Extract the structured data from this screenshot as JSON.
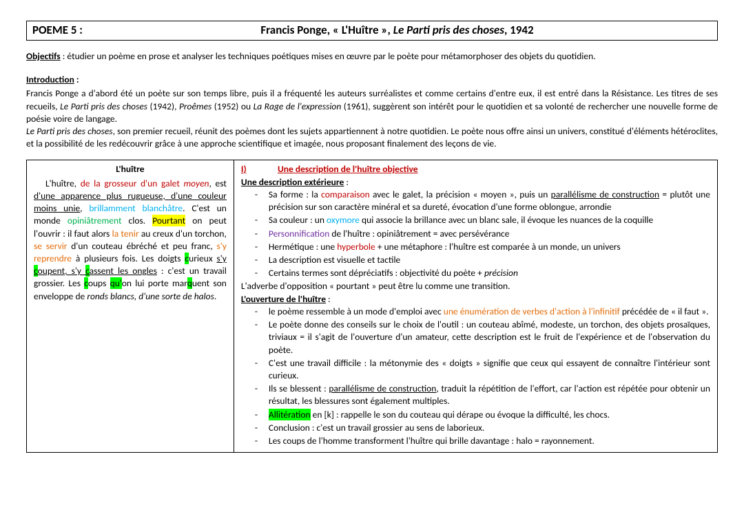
{
  "title": {
    "left": "POEME 5 :",
    "center_plain": "Francis Ponge, « L'Huître », ",
    "center_italic": "Le Parti pris des choses",
    "center_tail": ", 1942"
  },
  "objectifs": {
    "label": "Objectifs",
    "text": " : étudier un poème en prose et analyser les techniques poétiques mises en œuvre par le poète pour métamorphoser des objets du quotidien."
  },
  "intro": {
    "label": "Introduction",
    "p1a": "Francis Ponge a d'abord été un poète sur son temps libre, puis il a fréquenté les auteurs surréalistes et comme certains d'entre eux, il est entré dans la Résistance. Les titres de ses recueils, ",
    "p1b": "Le Parti pris des choses",
    "p1c": " (1942), ",
    "p1d": "Proêmes",
    "p1e": " (1952) ou ",
    "p1f": "La Rage de l'expression",
    "p1g": " (1961), suggèrent son intérêt pour le quotidien et sa volonté de rechercher une nouvelle forme de poésie voire de langage.",
    "p2a": "Le Parti pris des choses",
    "p2b": ", son premier recueil, réunit des poèmes dont les sujets appartiennent à notre quotidien. Le poète nous offre ainsi un univers, constitué d'éléments hétéroclites, et la possibilité de les redécouvrir grâce à une approche scientifique et imagée, nous proposant finalement des leçons de vie."
  },
  "poem": {
    "title": "L'huître",
    "t1": "   L'huître, ",
    "t2": "de la grosseur d'un galet ",
    "t3": "moyen",
    "t4": ", est ",
    "t5": "d'une apparence plus rugueuse, d'une couleur moins unie",
    "t6": ", ",
    "t7": "brillamment blanchâtre",
    "t8": ". C'est un monde ",
    "t9": "opiniâtrement",
    "t10": " clos. ",
    "t11": "Pourtant",
    "t12": " on peut l'ouvrir : il faut alors ",
    "t13": "la tenir",
    "t14": " au creux d'un torchon, ",
    "t15": "se servir",
    "t16": " d'un couteau ébréché et peu franc, ",
    "t17": "s'y reprendre",
    "t18": " à plusieurs fois. Les doigts ",
    "t19a": "c",
    "t19b": "urieux ",
    "t20": "s'y ",
    "t20a": "c",
    "t20b": "oupent, s'y ",
    "t20c": "c",
    "t20d": "assent les ongles",
    "t21": " : c'est un travail grossier. Les ",
    "t21a": "c",
    "t21b": "oups ",
    "t22a": "qu'",
    "t22b": "on lui porte mar",
    "t22c": "q",
    "t22d": "uent son enveloppe de ",
    "t23": "ronds blancs, d'une sorte de halos",
    "t24": "."
  },
  "analysis": {
    "roman": "I)",
    "section_title": "Une description de l'huître objective",
    "sub1": "Une description extérieure",
    "s1_li1a": "Sa forme : la ",
    "s1_li1b": "comparaison",
    "s1_li1c": " avec le galet,  la précision « moyen », puis un ",
    "s1_li1d": "parallélisme de construction",
    "s1_li1e": " = plutôt une précision sur son caractère minéral et sa dureté, évocation d'une forme oblongue, arrondie",
    "s1_li2a": "Sa couleur : un ",
    "s1_li2b": "oxymore",
    "s1_li2c": " qui associe la brillance avec un blanc sale, il évoque les nuances de la coquille",
    "s1_li3a": "Personnification",
    "s1_li3b": " de l'huître : opiniâtrement = avec persévérance",
    "s1_li4a": "Hermétique : une ",
    "s1_li4b": "hyperbole",
    "s1_li4c": " + une métaphore : l'huître est comparée à un monde, un univers",
    "s1_li5": "La description est visuelle et tactile",
    "s1_li6a": "Certains termes sont dépréciatifs : objectivité du poète + ",
    "s1_li6b": "précision",
    "transition": "L'adverbe d'opposition « pourtant » peut être lu comme une transition.",
    "sub2": "L'ouverture de l'huître",
    "s2_li1a": "le poème ressemble à un mode d'emploi avec ",
    "s2_li1b": "une énumération de verbes d'action à l'infinitif",
    "s2_li1c": " précédée de « il faut ».",
    "s2_li2": "Le poète donne des conseils sur le choix de l'outil : un couteau abîmé, modeste, un torchon, des objets prosaïques, triviaux = il s'agit de l'ouverture d'un amateur, cette description est le fruit de l'expérience et de l'observation du poète.",
    "s2_li3": "C'est une travail difficile : la métonymie  des « doigts » signifie que ceux qui essayent de connaître l'intérieur sont curieux.",
    "s2_li4a": "Ils se blessent : ",
    "s2_li4b": "parallélisme de construction",
    "s2_li4c": ", traduit la répétition de l'effort, car l'action est répétée pour obtenir un résultat, les blessures sont également multiples.",
    "s2_li5a": "Allitération",
    "s2_li5b": " en [k] : rappelle le son du couteau qui dérape ou évoque la difficulté, les chocs.",
    "s2_li6": "Conclusion : c'est un travail grossier  au sens de laborieux.",
    "s2_li7": "Les coups de l'homme transforment l'huître qui brille davantage : halo = rayonnement."
  }
}
